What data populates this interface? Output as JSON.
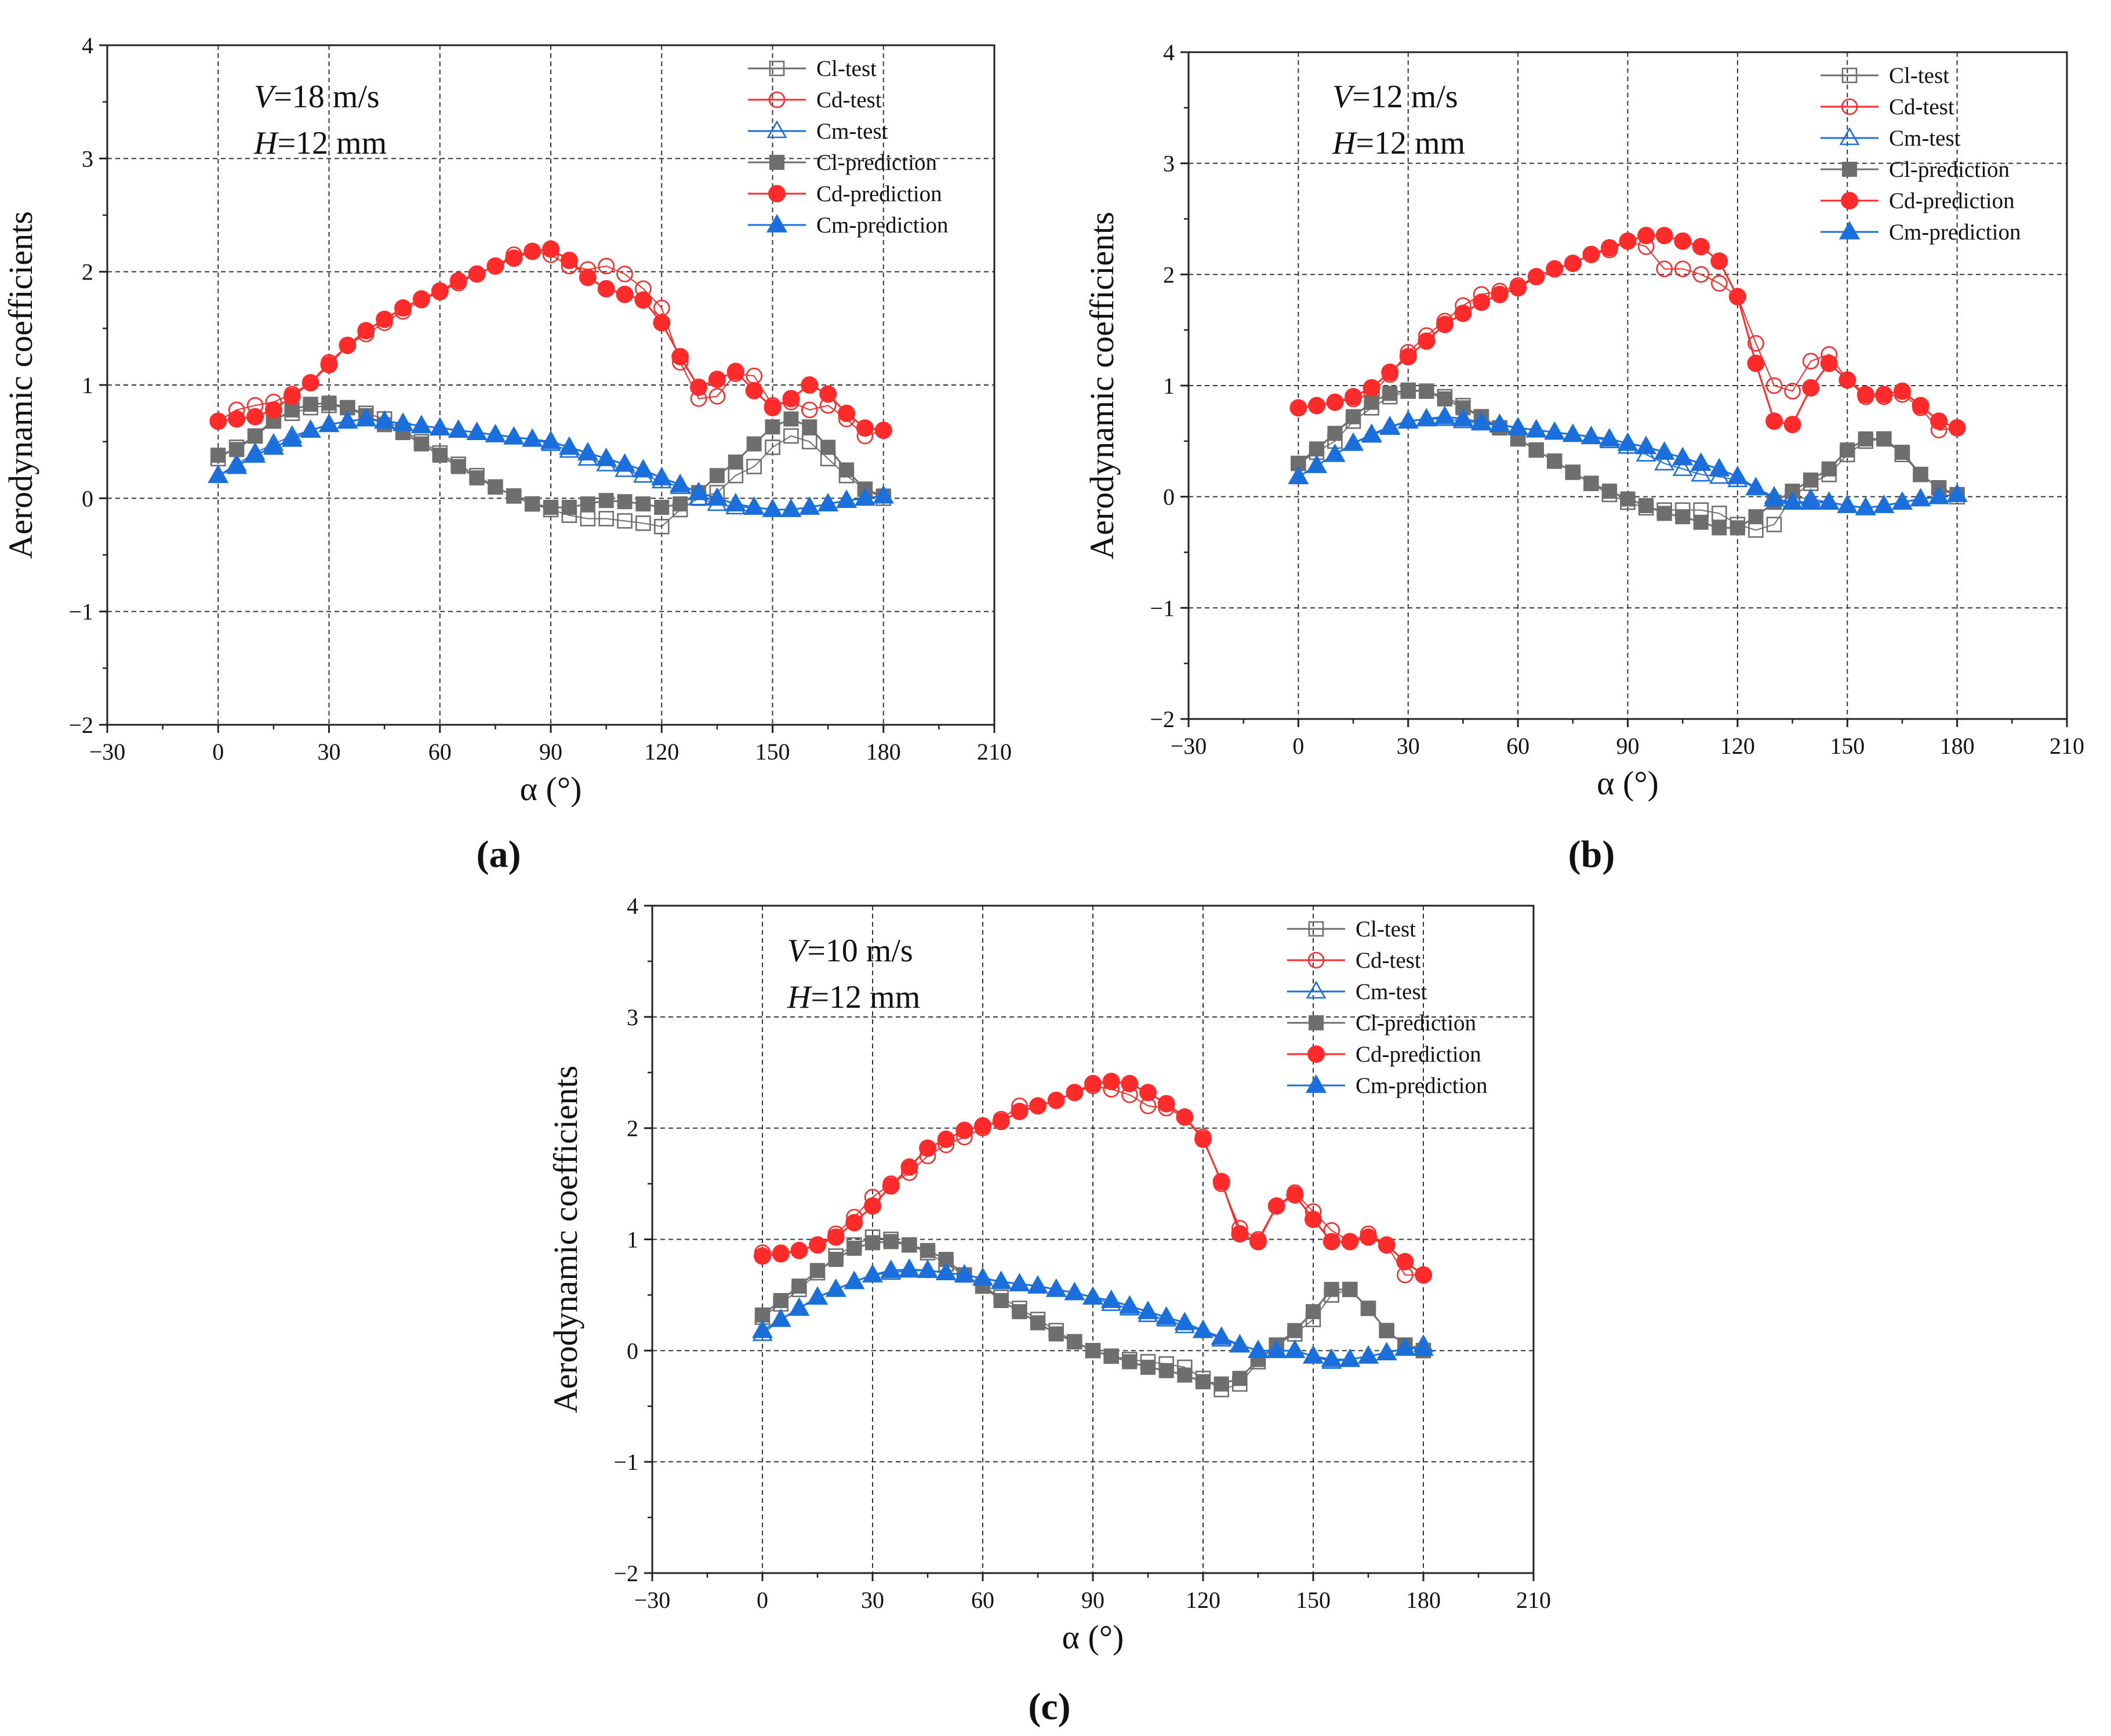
{
  "figure": {
    "panels": [
      {
        "caption": "(a)",
        "annotation": {
          "speed_symbol": "V",
          "speed_value": "=18 m/s",
          "height_symbol": "H",
          "height_value": "=12 mm"
        }
      },
      {
        "caption": "(b)",
        "annotation": {
          "speed_symbol": "V",
          "speed_value": "=12 m/s",
          "height_symbol": "H",
          "height_value": "=12 mm"
        }
      },
      {
        "caption": "(c)",
        "annotation": {
          "speed_symbol": "V",
          "speed_value": "=10 m/s",
          "height_symbol": "H",
          "height_value": "=12 mm"
        }
      }
    ]
  },
  "colors": {
    "cl": "#6e6e6e",
    "cd": "#ff2a2a",
    "cm": "#1a6fdc",
    "grid": "#333333",
    "axis": "#222222"
  },
  "chart_data": [
    {
      "type": "line",
      "xlabel": "α (°)",
      "ylabel": "Aerodynamic coefficients",
      "xlim": [
        -30,
        210
      ],
      "ylim": [
        -2,
        4
      ],
      "x_ticks": [
        -30,
        0,
        30,
        60,
        90,
        120,
        150,
        180,
        210
      ],
      "y_ticks": [
        -2,
        -1,
        0,
        1,
        2,
        3,
        4
      ],
      "grid": true,
      "legend_position": "top-right",
      "x": [
        0,
        5,
        10,
        15,
        20,
        25,
        30,
        35,
        40,
        45,
        50,
        55,
        60,
        65,
        70,
        75,
        80,
        85,
        90,
        95,
        100,
        105,
        110,
        115,
        120,
        125,
        130,
        135,
        140,
        145,
        150,
        155,
        160,
        165,
        170,
        175,
        180
      ],
      "series": [
        {
          "name": "Cl-test",
          "marker": "open-square",
          "values": [
            0.35,
            0.45,
            0.55,
            0.7,
            0.75,
            0.8,
            0.82,
            0.8,
            0.75,
            0.7,
            0.6,
            0.5,
            0.4,
            0.3,
            0.2,
            0.1,
            0.02,
            -0.05,
            -0.1,
            -0.15,
            -0.18,
            -0.18,
            -0.2,
            -0.22,
            -0.25,
            -0.1,
            0.0,
            0.05,
            0.2,
            0.28,
            0.45,
            0.55,
            0.5,
            0.35,
            0.2,
            0.08,
            0.0
          ]
        },
        {
          "name": "Cd-test",
          "marker": "open-circle",
          "values": [
            0.68,
            0.78,
            0.82,
            0.85,
            0.92,
            1.02,
            1.2,
            1.35,
            1.45,
            1.55,
            1.65,
            1.75,
            1.82,
            1.9,
            1.98,
            2.05,
            2.15,
            2.18,
            2.15,
            2.05,
            2.02,
            2.05,
            1.98,
            1.85,
            1.68,
            1.2,
            0.88,
            0.9,
            1.1,
            1.08,
            0.82,
            0.85,
            0.78,
            0.82,
            0.7,
            0.55,
            0.6
          ]
        },
        {
          "name": "Cm-test",
          "marker": "open-triangle",
          "values": [
            0.2,
            0.3,
            0.4,
            0.48,
            0.55,
            0.6,
            0.65,
            0.68,
            0.7,
            0.68,
            0.66,
            0.64,
            0.62,
            0.6,
            0.58,
            0.56,
            0.54,
            0.52,
            0.48,
            0.42,
            0.35,
            0.3,
            0.25,
            0.2,
            0.15,
            0.1,
            0.0,
            -0.05,
            -0.08,
            -0.08,
            -0.1,
            -0.1,
            -0.08,
            -0.05,
            -0.02,
            0.0,
            0.02
          ]
        },
        {
          "name": "Cl-prediction",
          "marker": "filled-square",
          "values": [
            0.38,
            0.43,
            0.55,
            0.68,
            0.78,
            0.83,
            0.84,
            0.8,
            0.73,
            0.65,
            0.58,
            0.48,
            0.38,
            0.28,
            0.18,
            0.1,
            0.02,
            -0.05,
            -0.08,
            -0.08,
            -0.05,
            -0.02,
            -0.03,
            -0.05,
            -0.08,
            -0.05,
            0.05,
            0.2,
            0.32,
            0.48,
            0.63,
            0.7,
            0.63,
            0.45,
            0.25,
            0.08,
            0.02
          ]
        },
        {
          "name": "Cd-prediction",
          "marker": "filled-circle",
          "values": [
            0.68,
            0.7,
            0.72,
            0.78,
            0.9,
            1.02,
            1.18,
            1.35,
            1.48,
            1.58,
            1.68,
            1.76,
            1.83,
            1.92,
            1.98,
            2.05,
            2.12,
            2.18,
            2.2,
            2.1,
            1.95,
            1.85,
            1.8,
            1.75,
            1.55,
            1.25,
            0.98,
            1.05,
            1.12,
            0.95,
            0.8,
            0.88,
            1.0,
            0.92,
            0.75,
            0.62,
            0.6
          ]
        },
        {
          "name": "Cm-prediction",
          "marker": "filled-triangle",
          "values": [
            0.2,
            0.28,
            0.38,
            0.45,
            0.52,
            0.6,
            0.65,
            0.68,
            0.7,
            0.68,
            0.66,
            0.64,
            0.62,
            0.6,
            0.58,
            0.56,
            0.54,
            0.52,
            0.5,
            0.45,
            0.4,
            0.35,
            0.3,
            0.25,
            0.18,
            0.12,
            0.05,
            0.0,
            -0.05,
            -0.08,
            -0.1,
            -0.1,
            -0.08,
            -0.05,
            -0.02,
            0.0,
            0.02
          ]
        }
      ]
    },
    {
      "type": "line",
      "xlabel": "α (°)",
      "ylabel": "Aerodynamic coefficients",
      "xlim": [
        -30,
        210
      ],
      "ylim": [
        -2,
        4
      ],
      "x_ticks": [
        -30,
        0,
        30,
        60,
        90,
        120,
        150,
        180,
        210
      ],
      "y_ticks": [
        -2,
        -1,
        0,
        1,
        2,
        3,
        4
      ],
      "grid": true,
      "legend_position": "top-right",
      "x": [
        0,
        5,
        10,
        15,
        20,
        25,
        30,
        35,
        40,
        45,
        50,
        55,
        60,
        65,
        70,
        75,
        80,
        85,
        90,
        95,
        100,
        105,
        110,
        115,
        120,
        125,
        130,
        135,
        140,
        145,
        150,
        155,
        160,
        165,
        170,
        175,
        180
      ],
      "series": [
        {
          "name": "Cl-test",
          "marker": "open-square",
          "values": [
            0.3,
            0.4,
            0.5,
            0.68,
            0.8,
            0.9,
            0.95,
            0.95,
            0.9,
            0.82,
            0.72,
            0.62,
            0.52,
            0.42,
            0.32,
            0.22,
            0.12,
            0.02,
            -0.05,
            -0.1,
            -0.12,
            -0.12,
            -0.12,
            -0.15,
            -0.25,
            -0.3,
            -0.25,
            0.0,
            0.12,
            0.2,
            0.38,
            0.5,
            0.52,
            0.38,
            0.2,
            0.08,
            0.0
          ]
        },
        {
          "name": "Cd-test",
          "marker": "open-circle",
          "values": [
            0.8,
            0.82,
            0.85,
            0.88,
            0.92,
            1.1,
            1.3,
            1.45,
            1.58,
            1.72,
            1.82,
            1.85,
            1.9,
            1.98,
            2.05,
            2.1,
            2.18,
            2.22,
            2.3,
            2.25,
            2.05,
            2.05,
            2.0,
            1.92,
            1.8,
            1.38,
            1.0,
            0.95,
            1.22,
            1.28,
            1.05,
            0.9,
            0.9,
            0.92,
            0.8,
            0.6,
            0.62
          ]
        },
        {
          "name": "Cm-test",
          "marker": "open-triangle",
          "values": [
            0.18,
            0.28,
            0.38,
            0.48,
            0.55,
            0.62,
            0.68,
            0.7,
            0.7,
            0.68,
            0.66,
            0.64,
            0.62,
            0.6,
            0.58,
            0.56,
            0.54,
            0.5,
            0.45,
            0.38,
            0.3,
            0.25,
            0.2,
            0.18,
            0.15,
            0.08,
            0.0,
            0.0,
            -0.02,
            -0.05,
            -0.08,
            -0.1,
            -0.08,
            -0.05,
            -0.02,
            0.0,
            0.02
          ]
        },
        {
          "name": "Cl-prediction",
          "marker": "filled-square",
          "values": [
            0.3,
            0.43,
            0.57,
            0.72,
            0.85,
            0.93,
            0.96,
            0.95,
            0.88,
            0.8,
            0.72,
            0.62,
            0.52,
            0.42,
            0.32,
            0.22,
            0.12,
            0.05,
            -0.02,
            -0.08,
            -0.15,
            -0.18,
            -0.23,
            -0.28,
            -0.28,
            -0.18,
            -0.05,
            0.05,
            0.15,
            0.25,
            0.42,
            0.52,
            0.52,
            0.4,
            0.2,
            0.08,
            0.02
          ]
        },
        {
          "name": "Cd-prediction",
          "marker": "filled-circle",
          "values": [
            0.8,
            0.82,
            0.85,
            0.9,
            0.98,
            1.12,
            1.26,
            1.4,
            1.55,
            1.65,
            1.75,
            1.82,
            1.88,
            1.98,
            2.05,
            2.1,
            2.18,
            2.24,
            2.3,
            2.35,
            2.35,
            2.3,
            2.25,
            2.12,
            1.8,
            1.2,
            0.68,
            0.65,
            0.98,
            1.2,
            1.05,
            0.92,
            0.92,
            0.95,
            0.82,
            0.68,
            0.62
          ]
        },
        {
          "name": "Cm-prediction",
          "marker": "filled-triangle",
          "values": [
            0.18,
            0.28,
            0.38,
            0.48,
            0.56,
            0.63,
            0.68,
            0.7,
            0.72,
            0.7,
            0.67,
            0.65,
            0.62,
            0.6,
            0.58,
            0.56,
            0.54,
            0.52,
            0.48,
            0.45,
            0.4,
            0.35,
            0.3,
            0.25,
            0.18,
            0.08,
            -0.02,
            -0.05,
            -0.05,
            -0.05,
            -0.08,
            -0.1,
            -0.08,
            -0.05,
            -0.02,
            0.0,
            0.02
          ]
        }
      ]
    },
    {
      "type": "line",
      "xlabel": "α (°)",
      "ylabel": "Aerodynamic coefficients",
      "xlim": [
        -30,
        210
      ],
      "ylim": [
        -2,
        4
      ],
      "x_ticks": [
        -30,
        0,
        30,
        60,
        90,
        120,
        150,
        180,
        210
      ],
      "y_ticks": [
        -2,
        -1,
        0,
        1,
        2,
        3,
        4
      ],
      "grid": true,
      "legend_position": "top-right",
      "x": [
        0,
        5,
        10,
        15,
        20,
        25,
        30,
        35,
        40,
        45,
        50,
        55,
        60,
        65,
        70,
        75,
        80,
        85,
        90,
        95,
        100,
        105,
        110,
        115,
        120,
        125,
        130,
        135,
        140,
        145,
        150,
        155,
        160,
        165,
        170,
        175,
        180
      ],
      "series": [
        {
          "name": "Cl-test",
          "marker": "open-square",
          "values": [
            0.3,
            0.42,
            0.55,
            0.7,
            0.85,
            0.95,
            1.02,
            1.0,
            0.95,
            0.88,
            0.78,
            0.68,
            0.58,
            0.48,
            0.38,
            0.28,
            0.18,
            0.08,
            0.0,
            -0.05,
            -0.08,
            -0.1,
            -0.12,
            -0.15,
            -0.25,
            -0.35,
            -0.3,
            -0.1,
            0.05,
            0.15,
            0.28,
            0.5,
            0.55,
            0.38,
            0.18,
            0.05,
            0.0
          ]
        },
        {
          "name": "Cd-test",
          "marker": "open-circle",
          "values": [
            0.88,
            0.88,
            0.9,
            0.95,
            1.05,
            1.2,
            1.38,
            1.5,
            1.6,
            1.75,
            1.85,
            1.92,
            2.0,
            2.08,
            2.2,
            2.2,
            2.25,
            2.32,
            2.38,
            2.35,
            2.3,
            2.2,
            2.18,
            2.1,
            1.92,
            1.5,
            1.1,
            1.0,
            1.3,
            1.42,
            1.25,
            1.08,
            0.98,
            1.05,
            0.95,
            0.68,
            0.68
          ]
        },
        {
          "name": "Cm-test",
          "marker": "open-triangle",
          "values": [
            0.15,
            0.28,
            0.38,
            0.48,
            0.55,
            0.62,
            0.68,
            0.7,
            0.72,
            0.72,
            0.7,
            0.68,
            0.65,
            0.62,
            0.6,
            0.58,
            0.55,
            0.52,
            0.48,
            0.42,
            0.38,
            0.32,
            0.28,
            0.22,
            0.18,
            0.1,
            0.05,
            0.0,
            0.0,
            0.0,
            -0.05,
            -0.1,
            -0.08,
            -0.05,
            -0.02,
            0.02,
            0.05
          ]
        },
        {
          "name": "Cl-prediction",
          "marker": "filled-square",
          "values": [
            0.32,
            0.45,
            0.58,
            0.72,
            0.82,
            0.92,
            0.97,
            0.98,
            0.95,
            0.9,
            0.82,
            0.68,
            0.58,
            0.45,
            0.35,
            0.25,
            0.15,
            0.08,
            0.0,
            -0.05,
            -0.1,
            -0.15,
            -0.18,
            -0.22,
            -0.28,
            -0.3,
            -0.25,
            -0.08,
            0.05,
            0.18,
            0.35,
            0.55,
            0.55,
            0.38,
            0.18,
            0.05,
            0.0
          ]
        },
        {
          "name": "Cd-prediction",
          "marker": "filled-circle",
          "values": [
            0.85,
            0.87,
            0.9,
            0.95,
            1.02,
            1.15,
            1.3,
            1.48,
            1.65,
            1.82,
            1.9,
            1.98,
            2.02,
            2.06,
            2.15,
            2.2,
            2.25,
            2.32,
            2.4,
            2.42,
            2.4,
            2.32,
            2.22,
            2.1,
            1.9,
            1.52,
            1.05,
            0.98,
            1.3,
            1.4,
            1.18,
            0.98,
            0.98,
            1.02,
            0.95,
            0.8,
            0.68
          ]
        },
        {
          "name": "Cm-prediction",
          "marker": "filled-triangle",
          "values": [
            0.18,
            0.28,
            0.38,
            0.48,
            0.55,
            0.62,
            0.68,
            0.72,
            0.73,
            0.72,
            0.7,
            0.68,
            0.65,
            0.62,
            0.6,
            0.58,
            0.55,
            0.52,
            0.48,
            0.45,
            0.4,
            0.35,
            0.3,
            0.25,
            0.18,
            0.12,
            0.05,
            0.0,
            0.0,
            0.0,
            -0.05,
            -0.08,
            -0.08,
            -0.05,
            -0.02,
            0.02,
            0.02
          ]
        }
      ]
    }
  ]
}
